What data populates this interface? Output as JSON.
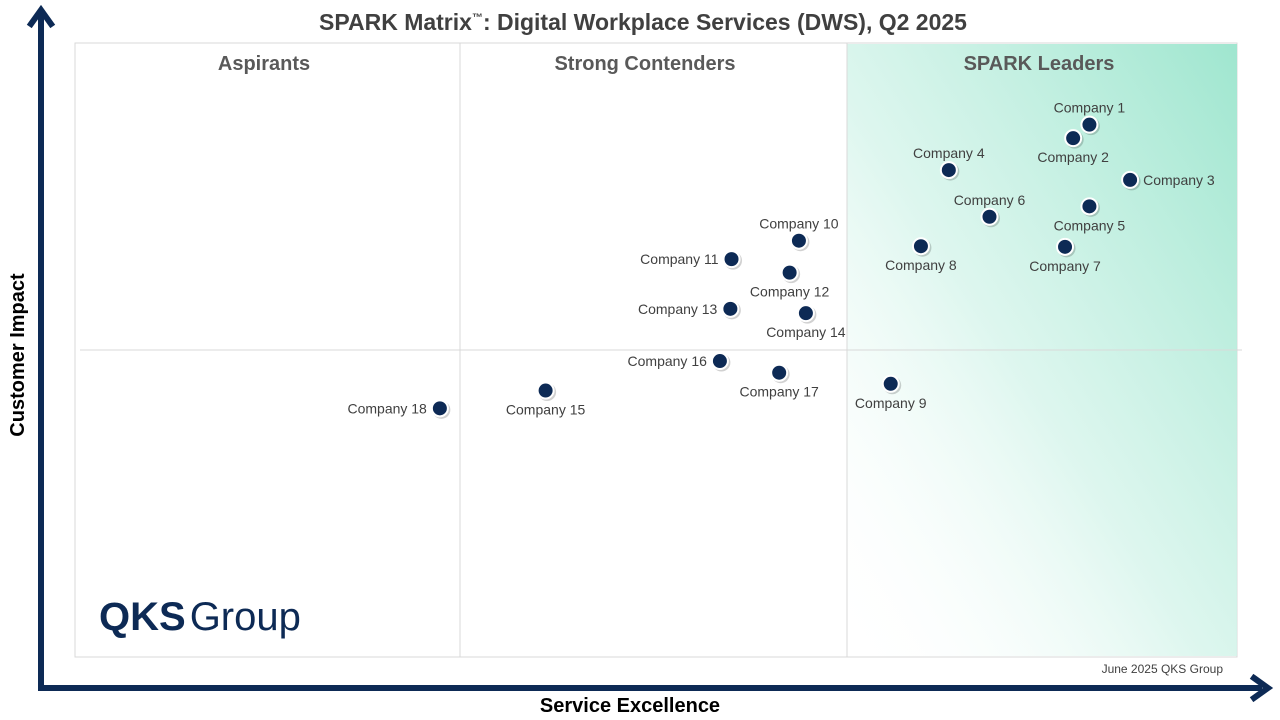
{
  "title": {
    "main": "SPARK Matrix",
    "trademark": "™",
    "rest": ": Digital Workplace Services (DWS), Q2 2025"
  },
  "quadrants": {
    "aspirants": "Aspirants",
    "strong_contenders": "Strong Contenders",
    "leaders": "SPARK Leaders"
  },
  "footer": "June 2025 QKS Group",
  "logo": {
    "bold": "QKS",
    "light": "Group"
  },
  "colors": {
    "axis": "#0d2a55",
    "point": "#0d2a55",
    "leader_gradient": "#9fe6cf",
    "grid": "#d9d9d9"
  },
  "chart_data": {
    "type": "scatter",
    "title": "SPARK Matrix™: Digital Workplace Services (DWS), Q2 2025",
    "xlabel": "Service Excellence",
    "ylabel": "Customer Impact",
    "xlim": [
      0,
      100
    ],
    "ylim": [
      0,
      100
    ],
    "grid": false,
    "points": [
      {
        "name": "Company 1",
        "x": 87.3,
        "y": 86.7,
        "label_pos": "above"
      },
      {
        "name": "Company 2",
        "x": 85.9,
        "y": 84.5,
        "label_pos": "below"
      },
      {
        "name": "Company 3",
        "x": 90.8,
        "y": 77.7,
        "label_pos": "right"
      },
      {
        "name": "Company 4",
        "x": 75.2,
        "y": 79.3,
        "label_pos": "above"
      },
      {
        "name": "Company 5",
        "x": 87.3,
        "y": 73.4,
        "label_pos": "below"
      },
      {
        "name": "Company 6",
        "x": 78.7,
        "y": 71.7,
        "label_pos": "above"
      },
      {
        "name": "Company 7",
        "x": 85.2,
        "y": 66.8,
        "label_pos": "below"
      },
      {
        "name": "Company 8",
        "x": 72.8,
        "y": 66.9,
        "label_pos": "below"
      },
      {
        "name": "Company 9",
        "x": 70.2,
        "y": 44.5,
        "label_pos": "below"
      },
      {
        "name": "Company 10",
        "x": 62.3,
        "y": 67.8,
        "label_pos": "above"
      },
      {
        "name": "Company 11",
        "x": 56.5,
        "y": 64.8,
        "label_pos": "left"
      },
      {
        "name": "Company 12",
        "x": 61.5,
        "y": 62.6,
        "label_pos": "below"
      },
      {
        "name": "Company 13",
        "x": 56.4,
        "y": 56.7,
        "label_pos": "left"
      },
      {
        "name": "Company 14",
        "x": 62.9,
        "y": 56.0,
        "label_pos": "below"
      },
      {
        "name": "Company 15",
        "x": 40.5,
        "y": 43.4,
        "label_pos": "below"
      },
      {
        "name": "Company 16",
        "x": 55.5,
        "y": 48.2,
        "label_pos": "left"
      },
      {
        "name": "Company 17",
        "x": 60.6,
        "y": 46.3,
        "label_pos": "below"
      },
      {
        "name": "Company 18",
        "x": 31.4,
        "y": 40.5,
        "label_pos": "left"
      }
    ]
  }
}
